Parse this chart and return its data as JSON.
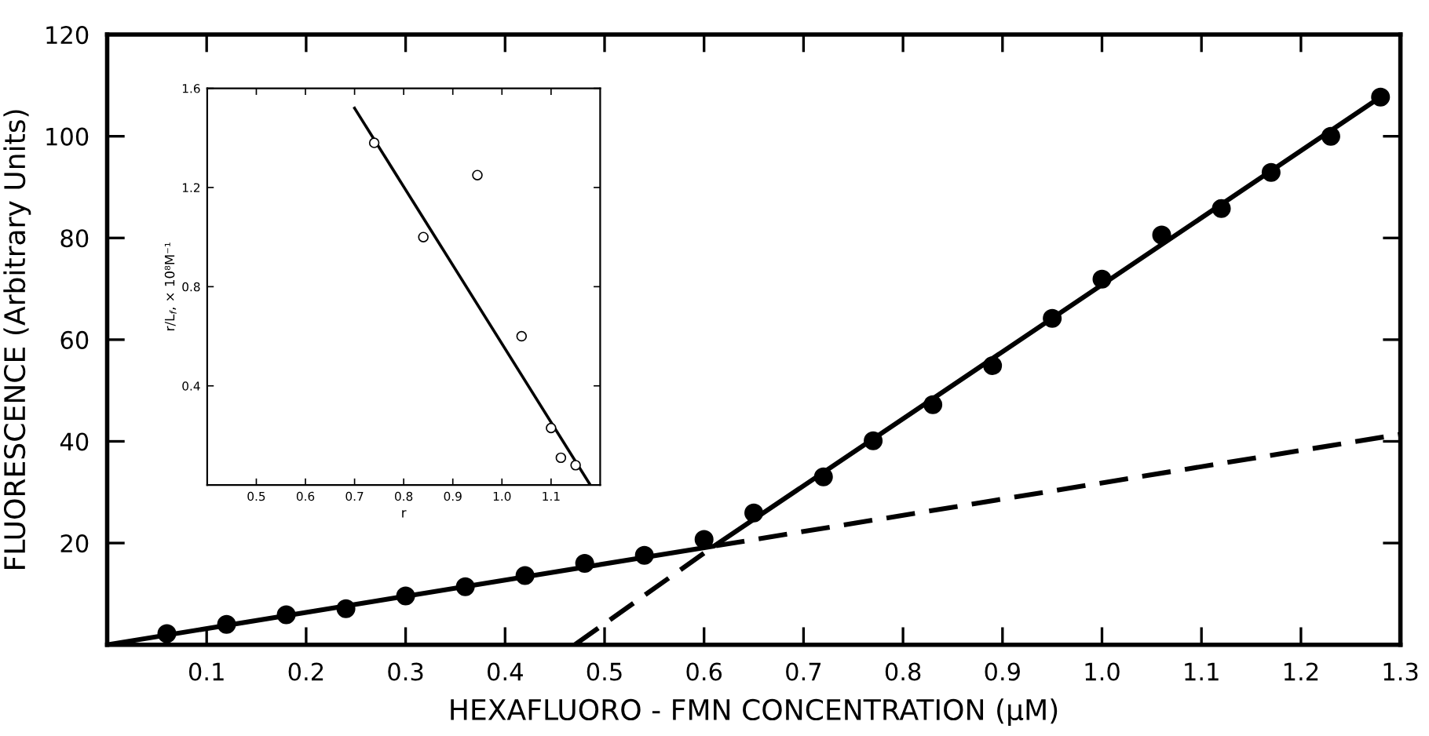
{
  "chart_data": [
    {
      "type": "scatter",
      "xlabel": "HEXAFLUORO - FMN CONCENTRATION (μM)",
      "ylabel": "FLUORESCENCE (Arbitrary Units)",
      "xlim": [
        0,
        1.3
      ],
      "ylim": [
        0,
        120
      ],
      "xticks": [
        {
          "value": 0.1,
          "label": "0.1"
        },
        {
          "value": 0.2,
          "label": "0.2"
        },
        {
          "value": 0.3,
          "label": "0.3"
        },
        {
          "value": 0.4,
          "label": "0.4"
        },
        {
          "value": 0.5,
          "label": "0.5"
        },
        {
          "value": 0.6,
          "label": "0.6"
        },
        {
          "value": 0.7,
          "label": "0.7"
        },
        {
          "value": 0.8,
          "label": "0.8"
        },
        {
          "value": 0.9,
          "label": "0.9"
        },
        {
          "value": 1.0,
          "label": "1.0"
        },
        {
          "value": 1.1,
          "label": "1.1"
        },
        {
          "value": 1.2,
          "label": "1.2"
        },
        {
          "value": 1.3,
          "label": "1.3"
        }
      ],
      "yticks": [
        20,
        40,
        60,
        80,
        100,
        120
      ],
      "grid": false,
      "legend": false,
      "series": [
        {
          "marker": "circle",
          "color": "#000000",
          "x": [
            0.06,
            0.12,
            0.18,
            0.24,
            0.3,
            0.36,
            0.42,
            0.48,
            0.54,
            0.6,
            0.65,
            0.72,
            0.77,
            0.83,
            0.89,
            0.95,
            1.0,
            1.06,
            1.12,
            1.17,
            1.23,
            1.28
          ],
          "values": [
            2.2,
            4.0,
            5.9,
            7.1,
            9.6,
            11.4,
            13.6,
            16.0,
            17.6,
            20.7,
            25.9,
            33.0,
            40.1,
            47.2,
            54.9,
            64.2,
            71.9,
            80.6,
            85.8,
            92.9,
            100.0,
            107.7
          ]
        },
        {
          "type": "line",
          "line_style": "solid",
          "color": "#000000",
          "x": [
            0,
            0.61,
            1.28
          ],
          "values": [
            0,
            19.4,
            107.7
          ]
        },
        {
          "type": "line",
          "line_style": "dashed",
          "color": "#000000",
          "x": [
            0.47,
            0.61,
            1.3
          ],
          "values": [
            0,
            19.4,
            41.4
          ]
        }
      ]
    },
    {
      "type": "scatter",
      "xlabel": "r",
      "ylabel": "r/L$_{f}$, × 10⁸M⁻¹",
      "xlim": [
        0.4,
        1.2
      ],
      "ylim": [
        0,
        1.6
      ],
      "xticks": [
        0.5,
        0.6,
        0.7,
        0.8,
        0.9,
        {
          "value": 1.0,
          "label": "1.0"
        },
        1.1
      ],
      "yticks": [
        0.4,
        0.8,
        1.2,
        1.6
      ],
      "grid": false,
      "legend": false,
      "series": [
        {
          "marker": "circle",
          "color": "#000000",
          "x": [
            0.74,
            0.84,
            0.95,
            1.04,
            1.1,
            1.12,
            1.15
          ],
          "values": [
            1.38,
            1.0,
            1.25,
            0.6,
            0.23,
            0.11,
            0.08
          ]
        },
        {
          "type": "line",
          "line_style": "solid",
          "color": "#000000",
          "x": [
            0.7,
            1.18
          ],
          "values": [
            1.52,
            0
          ]
        }
      ]
    }
  ]
}
